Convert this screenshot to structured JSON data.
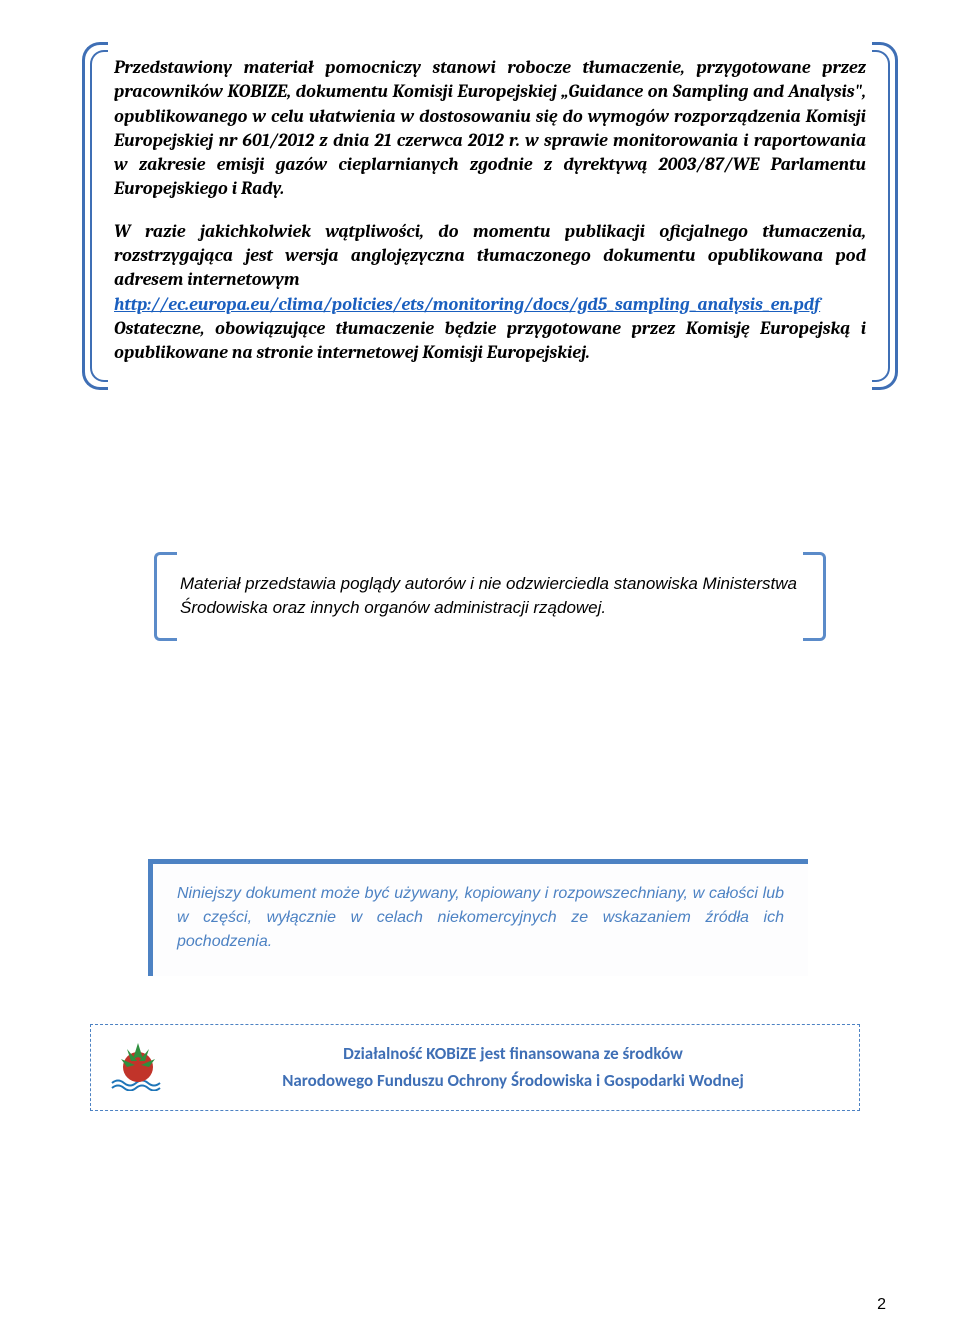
{
  "colors": {
    "bracket1": "#3f6fb5",
    "bracket2": "#5b8bc9",
    "panel3_border": "#4d82c3",
    "panel3_bg": "#fdfdfe",
    "box3_text": "#4d82c3",
    "box4_border": "#4d82c3",
    "box4_text": "#3f6fb5",
    "link": "#1a5fbf",
    "logo_green": "#2f8f3e",
    "logo_red": "#c1342a",
    "logo_blue": "#1e75b8",
    "pagenum": "#000000"
  },
  "box1": {
    "p1": "Przedstawiony materiał pomocniczy stanowi robocze tłumaczenie, przygotowane przez pracowników KOBIZE, dokumentu Komisji Europejskiej „Guidance on Sampling and Analysis\", opublikowanego w celu ułatwienia w dostosowaniu się do wymogów rozporządzenia Komisji Europejskiej nr 601/2012 z dnia 21 czerwca 2012 r. w sprawie monitorowania i raportowania w zakresie emisji gazów cieplarnianych zgodnie z dyrektywą 2003/87/WE Parlamentu Europejskiego i Rady.",
    "p2a": "W razie jakichkolwiek wątpliwości, do momentu publikacji oficjalnego tłumaczenia, rozstrzygająca jest wersja anglojęzyczna tłumaczonego dokumentu opublikowana pod adresem internetowym",
    "link": "http://ec.europa.eu/clima/policies/ets/monitoring/docs/gd5_sampling_analysis_en.pdf",
    "p3": "Ostateczne, obowiązujące tłumaczenie będzie przygotowane przez Komisję Europejską i opublikowane na stronie internetowej Komisji Europejskiej."
  },
  "box2": {
    "text": "Materiał przedstawia poglądy autorów i nie odzwierciedla stanowiska Ministerstwa Środowiska oraz innych organów administracji rządowej."
  },
  "box3": {
    "text": "Niniejszy dokument może być używany, kopiowany i rozpowszechniany, w całości lub w części, wyłącznie w celach niekomercyjnych ze wskazaniem źródła ich pochodzenia."
  },
  "box4": {
    "line1": "Działalność KOBiZE jest finansowana ze środków",
    "line2": "Narodowego Funduszu Ochrony Środowiska i Gospodarki Wodnej"
  },
  "page_number": "2"
}
